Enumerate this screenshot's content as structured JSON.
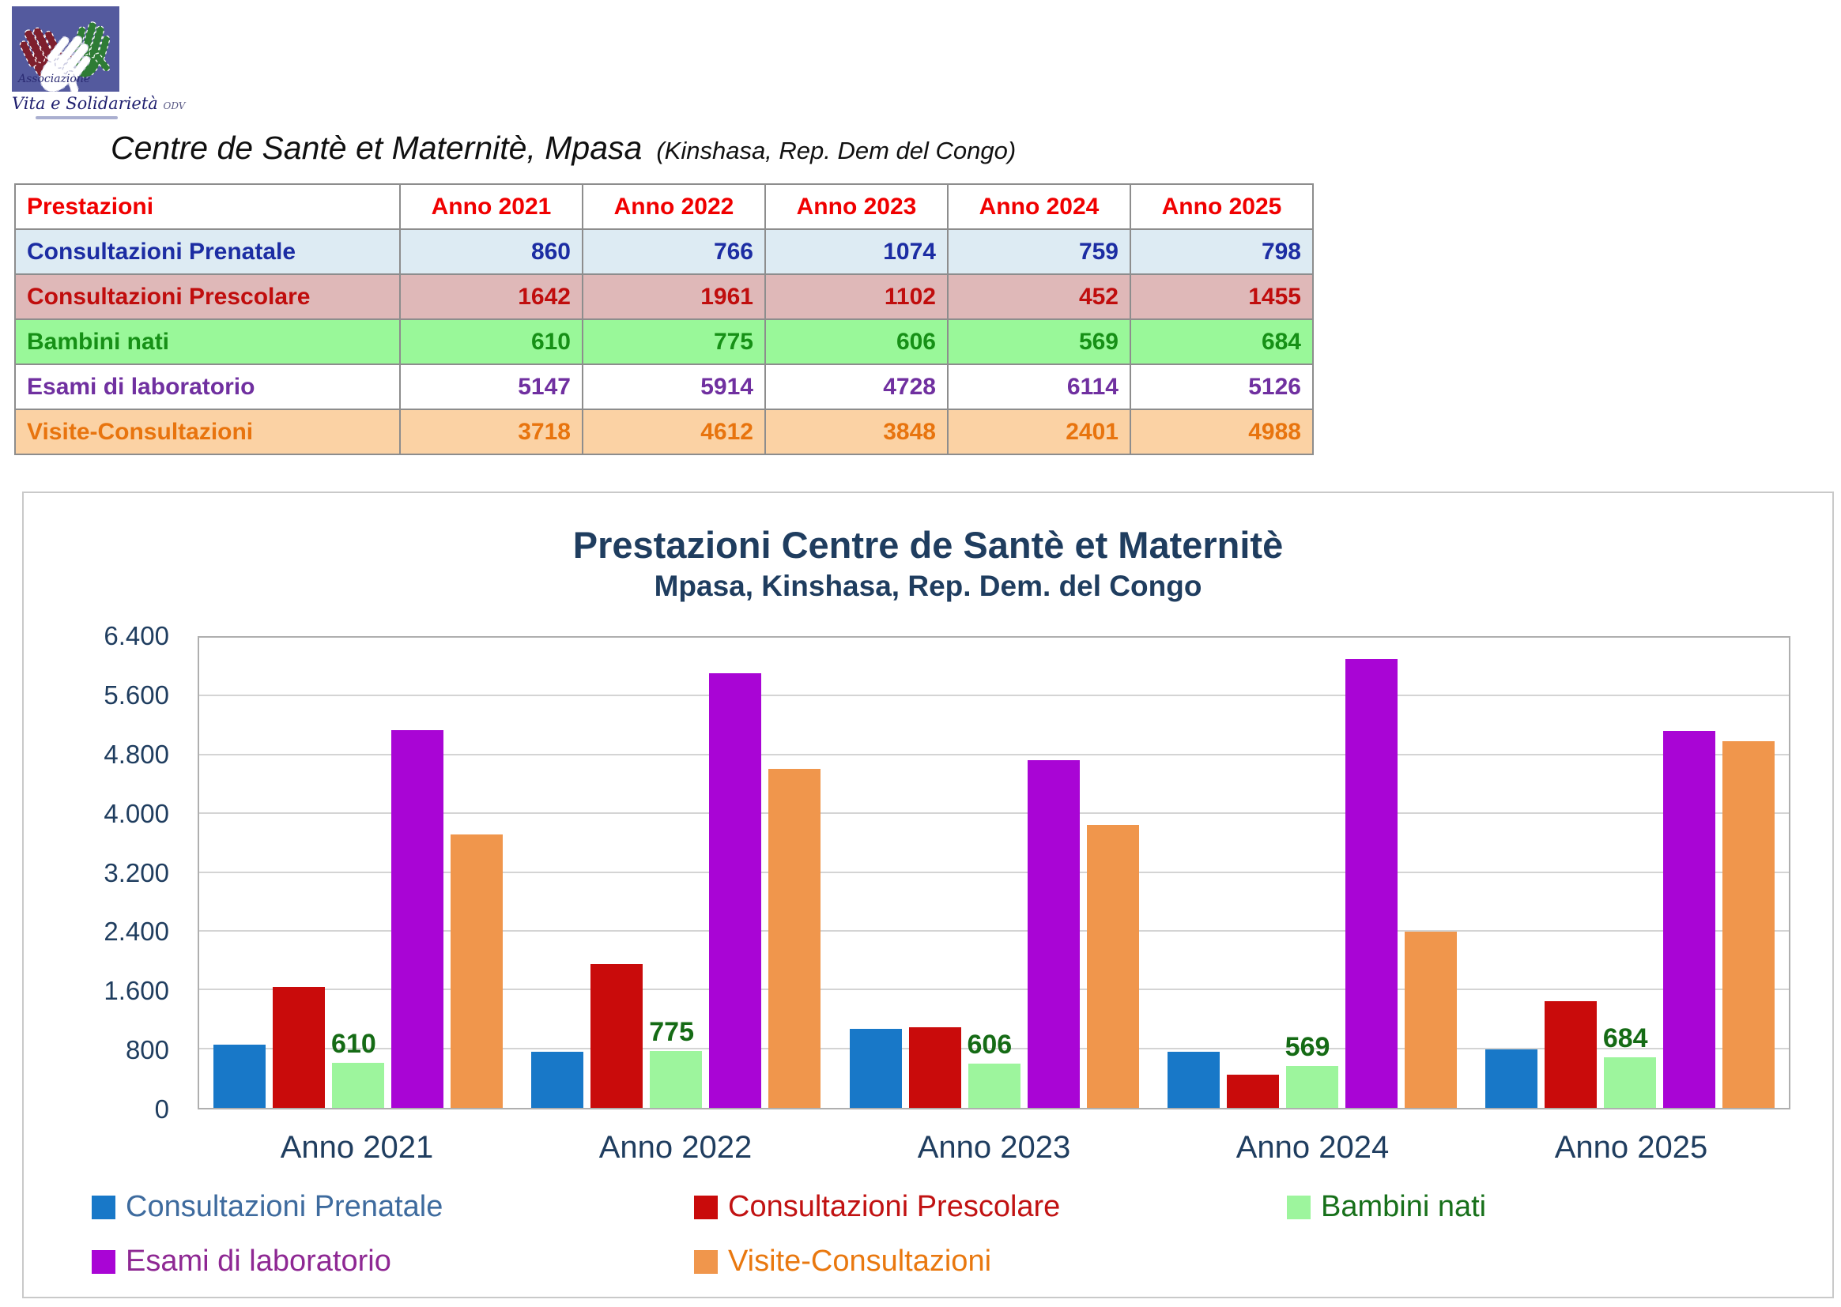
{
  "logo": {
    "line1": "Associazione",
    "line2": "Vita e Solidarietà",
    "suffix": "ODV"
  },
  "doc_title": {
    "main": "Centre de Santè et Maternitè, Mpasa",
    "sub": "(Kinshasa, Rep. Dem del Congo)"
  },
  "table": {
    "header": [
      "Prestazioni",
      "Anno 2021",
      "Anno 2022",
      "Anno 2023",
      "Anno 2024",
      "Anno 2025"
    ],
    "header_color": "#F00000",
    "rows": [
      {
        "label": "Consultazioni Prenatale",
        "values": [
          860,
          766,
          1074,
          759,
          798
        ],
        "text_color": "#1C2DA3",
        "bg": "#DDEBF3"
      },
      {
        "label": "Consultazioni Prescolare",
        "values": [
          1642,
          1961,
          1102,
          452,
          1455
        ],
        "text_color": "#C00D0D",
        "bg": "#DFB8B8"
      },
      {
        "label": "Bambini nati",
        "values": [
          610,
          775,
          606,
          569,
          684
        ],
        "text_color": "#169016",
        "bg": "#99F899"
      },
      {
        "label": "Esami di laboratorio",
        "values": [
          5147,
          5914,
          4728,
          6114,
          5126
        ],
        "text_color": "#7030A0",
        "bg": "#FFFFFF"
      },
      {
        "label": "Visite-Consultazioni",
        "values": [
          3718,
          4612,
          3848,
          2401,
          4988
        ],
        "text_color": "#E8740E",
        "bg": "#FBD2A4"
      }
    ]
  },
  "chart_data": {
    "type": "bar",
    "title": "Prestazioni Centre de Santè et Maternitè",
    "subtitle": "Mpasa, Kinshasa, Rep. Dem. del Congo",
    "categories": [
      "Anno 2021",
      "Anno 2022",
      "Anno 2023",
      "Anno 2024",
      "Anno 2025"
    ],
    "series": [
      {
        "name": "Consultazioni Prenatale",
        "color": "#1878C8",
        "legend_text_color": "#3E6B9E",
        "values": [
          860,
          766,
          1074,
          759,
          798
        ]
      },
      {
        "name": "Consultazioni Prescolare",
        "color": "#C90B0B",
        "legend_text_color": "#C11212",
        "values": [
          1642,
          1961,
          1102,
          452,
          1455
        ]
      },
      {
        "name": "Bambini nati",
        "color": "#9DF59D",
        "legend_text_color": "#17701A",
        "values": [
          610,
          775,
          606,
          569,
          684
        ],
        "data_labels": true,
        "label_color": "#156B15"
      },
      {
        "name": "Esami di laboratorio",
        "color": "#A905D5",
        "legend_text_color": "#8E2893",
        "values": [
          5147,
          5914,
          4728,
          6114,
          5126
        ]
      },
      {
        "name": "Visite-Consultazioni",
        "color": "#F0964C",
        "legend_text_color": "#E9780F",
        "values": [
          3718,
          4612,
          3848,
          2401,
          4988
        ]
      }
    ],
    "ylim": [
      0,
      6400
    ],
    "ytick_step": 800,
    "ytick_labels": [
      "0",
      "800",
      "1.600",
      "2.400",
      "3.200",
      "4.000",
      "4.800",
      "5.600",
      "6.400"
    ],
    "grid": true,
    "legend_position": "bottom",
    "axis_text_color": "#1F3D5F"
  }
}
